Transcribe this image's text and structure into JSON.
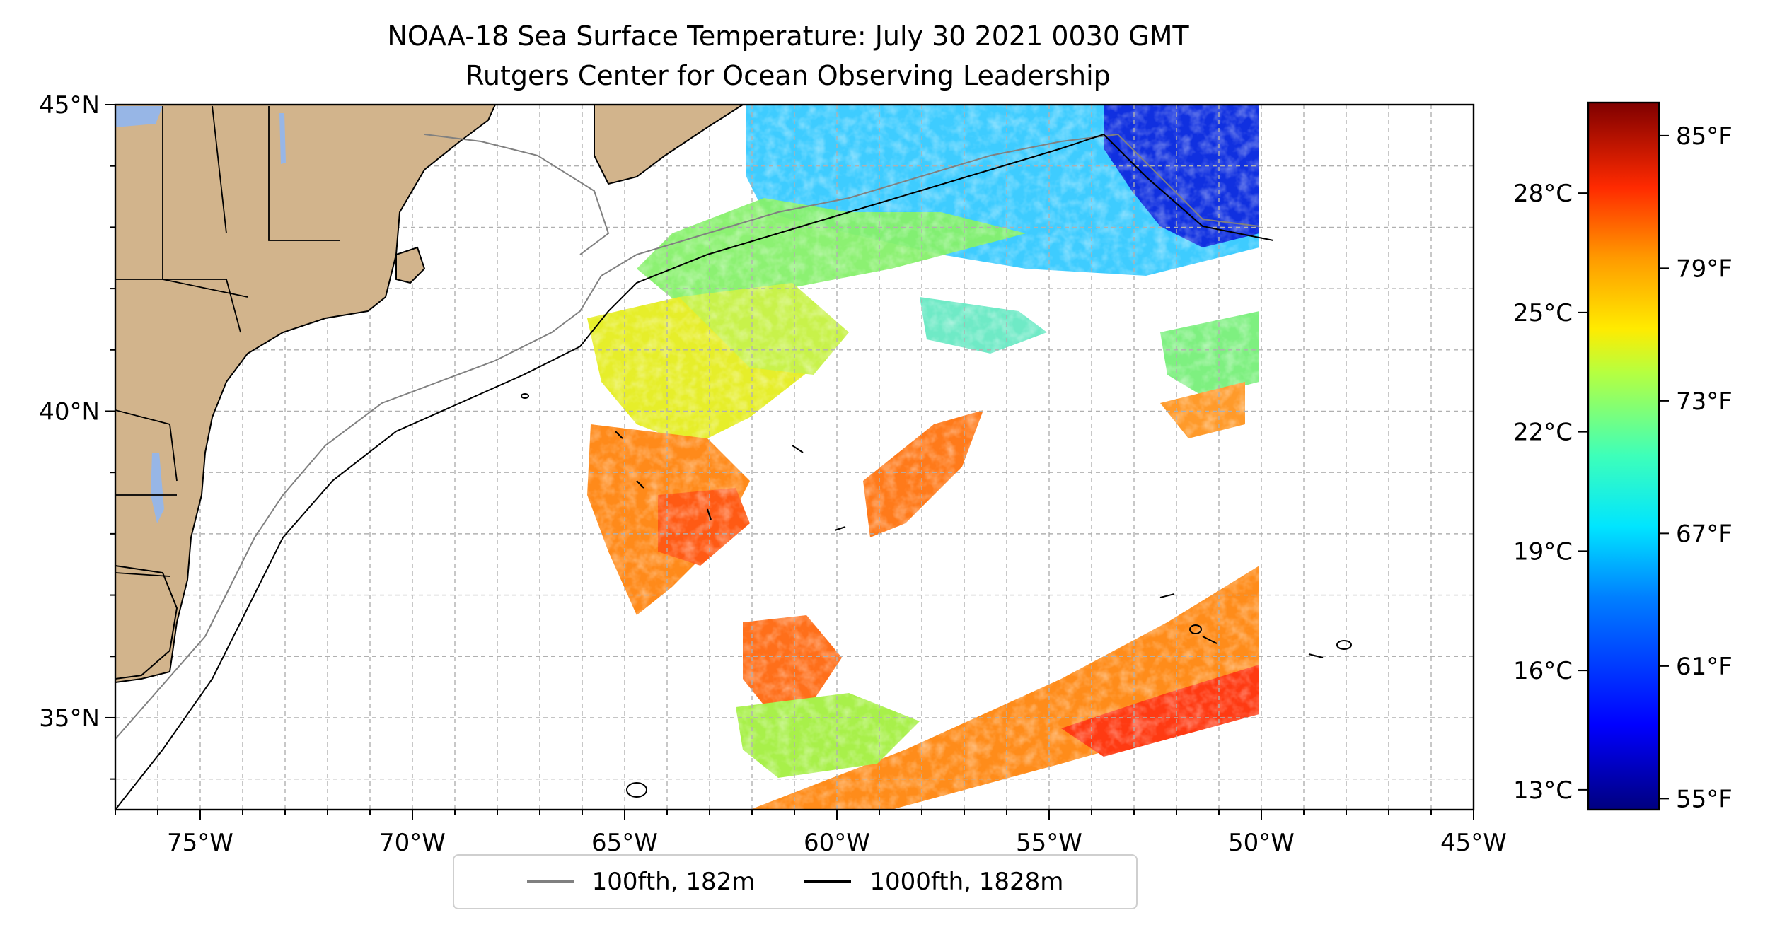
{
  "title": {
    "line1": "NOAA-18 Sea Surface Temperature: July 30 2021 0030 GMT",
    "line2": "Rutgers Center for Ocean Observing Leadership"
  },
  "map": {
    "extent": {
      "lon": [
        -77,
        -45
      ],
      "lat": [
        33.5,
        45
      ]
    },
    "land_color": "#d2b48c",
    "ocean_color": "#ffffff",
    "grid": true,
    "x_ticks": [
      {
        "lon": -75,
        "label": "75°W"
      },
      {
        "lon": -70,
        "label": "70°W"
      },
      {
        "lon": -65,
        "label": "65°W"
      },
      {
        "lon": -60,
        "label": "60°W"
      },
      {
        "lon": -55,
        "label": "55°W"
      },
      {
        "lon": -50,
        "label": "50°W"
      },
      {
        "lon": -45,
        "label": "45°W"
      }
    ],
    "y_ticks": [
      {
        "lat": 45,
        "label": "45°N"
      },
      {
        "lat": 40,
        "label": "40°N"
      },
      {
        "lat": 35,
        "label": "35°N"
      }
    ]
  },
  "colorbar": {
    "colormap": "jet",
    "celsius_ticks": [
      {
        "value": 13,
        "label": "13°C"
      },
      {
        "value": 16,
        "label": "16°C"
      },
      {
        "value": 19,
        "label": "19°C"
      },
      {
        "value": 22,
        "label": "22°C"
      },
      {
        "value": 25,
        "label": "25°C"
      },
      {
        "value": 28,
        "label": "28°C"
      }
    ],
    "fahrenheit_ticks": [
      {
        "value": 55,
        "label": "55°F"
      },
      {
        "value": 61,
        "label": "61°F"
      },
      {
        "value": 67,
        "label": "67°F"
      },
      {
        "value": 73,
        "label": "73°F"
      },
      {
        "value": 79,
        "label": "79°F"
      },
      {
        "value": 85,
        "label": "85°F"
      }
    ],
    "range_f": [
      54.5,
      86.5
    ]
  },
  "legend": {
    "items": [
      {
        "label": "100fth, 182m",
        "color": "#808080"
      },
      {
        "label": "1000fth, 1828m",
        "color": "#000000"
      }
    ]
  }
}
